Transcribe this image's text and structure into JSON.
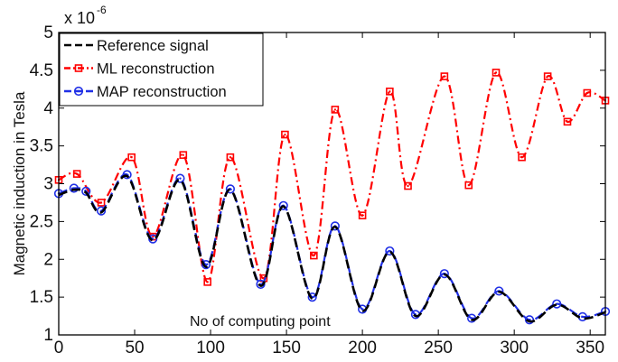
{
  "chart_data": {
    "type": "line",
    "title": "",
    "xlabel": "",
    "ylabel": "Magnetic induction in Tesla",
    "y_multiplier": {
      "base": "x 10",
      "exponent": "-6"
    },
    "xlim": [
      0,
      360
    ],
    "ylim": [
      1,
      5
    ],
    "x_ticks": [
      0,
      50,
      100,
      150,
      200,
      250,
      300,
      350
    ],
    "y_ticks": [
      1,
      1.5,
      2,
      2.5,
      3,
      3.5,
      4,
      4.5,
      5
    ],
    "x_tick_labels": [
      "0",
      "50",
      "100",
      "150",
      "200",
      "250",
      "300",
      "350"
    ],
    "y_tick_labels": [
      "1",
      "1.5",
      "2",
      "2.5",
      "3",
      "3.5",
      "4",
      "4.5",
      "5"
    ],
    "grid": false,
    "legend_position": "top-left",
    "annotation": "No of computing point",
    "series": [
      {
        "name": "Reference signal",
        "color": "#000000",
        "style": "dashed",
        "marker": "none",
        "x": [
          0,
          10,
          18,
          28,
          45,
          62,
          80,
          97,
          113,
          133,
          148,
          167,
          182,
          200,
          218,
          235,
          254,
          272,
          290,
          310,
          328,
          345,
          360
        ],
        "values": [
          2.85,
          2.92,
          2.88,
          2.62,
          3.1,
          2.25,
          3.05,
          1.9,
          2.92,
          1.65,
          2.7,
          1.48,
          2.43,
          1.32,
          2.1,
          1.25,
          1.8,
          1.2,
          1.57,
          1.18,
          1.4,
          1.22,
          1.3
        ]
      },
      {
        "name": "ML reconstruction",
        "color": "#ff0000",
        "style": "dashdot",
        "marker": "square",
        "x": [
          0,
          12,
          28,
          48,
          62,
          82,
          98,
          113,
          135,
          149,
          168,
          182,
          200,
          218,
          230,
          254,
          270,
          288,
          305,
          322,
          335,
          348,
          360
        ],
        "values": [
          3.05,
          3.13,
          2.75,
          3.35,
          2.3,
          3.38,
          1.7,
          3.35,
          1.75,
          3.65,
          2.05,
          3.98,
          2.58,
          4.22,
          2.97,
          4.42,
          2.98,
          4.47,
          3.35,
          4.42,
          3.82,
          4.2,
          4.1
        ]
      },
      {
        "name": "MAP reconstruction",
        "color": "#1f2fe6",
        "style": "dashed",
        "marker": "circle",
        "x": [
          0,
          10,
          18,
          28,
          45,
          62,
          80,
          97,
          113,
          133,
          148,
          167,
          182,
          200,
          218,
          235,
          254,
          272,
          290,
          310,
          328,
          345,
          360
        ],
        "values": [
          2.87,
          2.94,
          2.9,
          2.64,
          3.12,
          2.27,
          3.07,
          1.93,
          2.93,
          1.67,
          2.71,
          1.5,
          2.44,
          1.34,
          2.11,
          1.27,
          1.81,
          1.22,
          1.58,
          1.2,
          1.41,
          1.24,
          1.31
        ]
      }
    ]
  }
}
